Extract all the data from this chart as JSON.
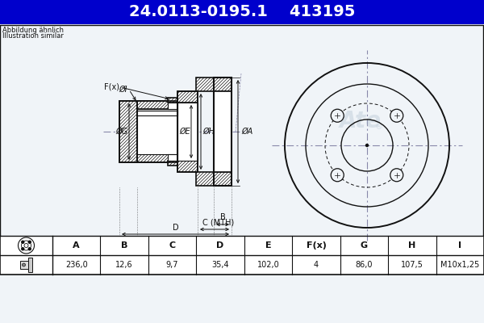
{
  "title_part_number": "24.0113-0195.1",
  "title_ref_number": "413195",
  "subtitle1": "Abbildung ähnlich",
  "subtitle2": "Illustration similar",
  "bg_color": "#f0f4f8",
  "title_bg": "#0000cc",
  "title_fg": "#ffffff",
  "table_header": [
    "A",
    "B",
    "C",
    "D",
    "E",
    "F(x)",
    "G",
    "H",
    "I"
  ],
  "table_values": [
    "236,0",
    "12,6",
    "9,7",
    "35,4",
    "102,0",
    "4",
    "86,0",
    "107,5",
    "M10x1,25"
  ],
  "line_color": "#111111",
  "text_color": "#111111",
  "hatch_color": "#555555",
  "crosshair_color": "#8888aa",
  "ate_logo_color": "#aabbcc"
}
